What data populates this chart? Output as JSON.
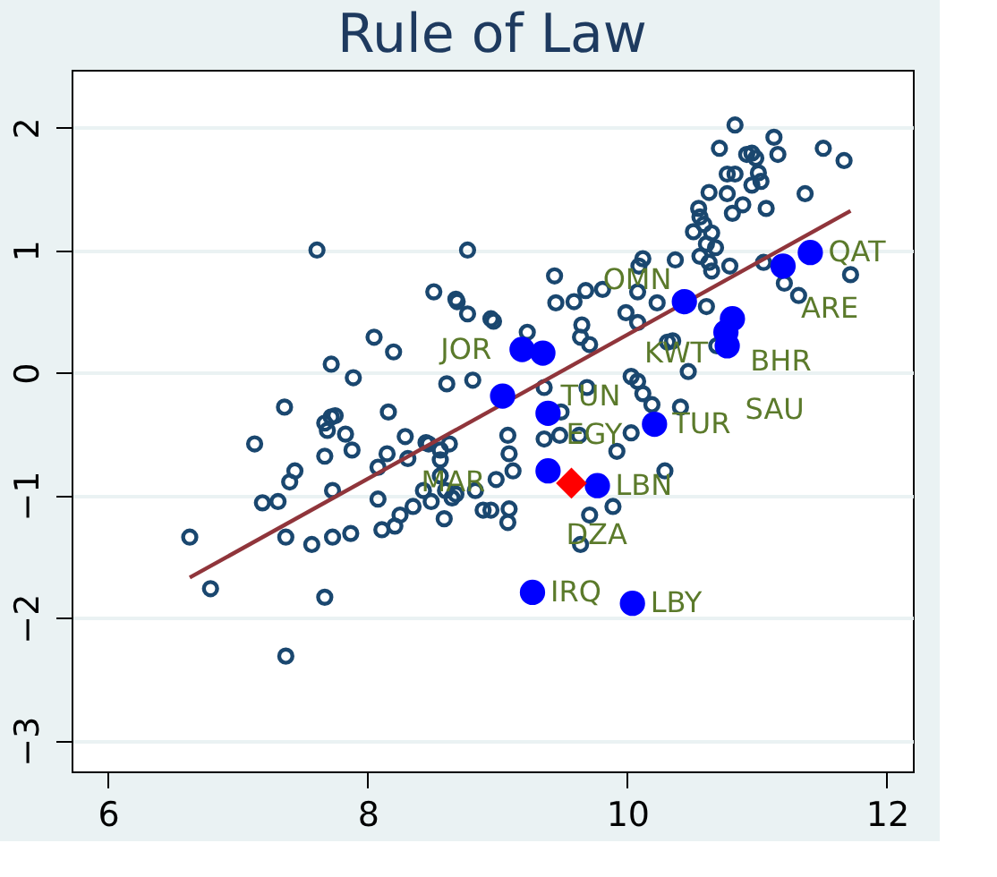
{
  "chart_data": {
    "type": "scatter",
    "title": "Rule of Law",
    "xlim": [
      5.72,
      12.2
    ],
    "xticks": [
      6,
      8,
      10,
      12
    ],
    "ylim": [
      -3.25,
      2.47
    ],
    "yticks": [
      -3,
      -2,
      -1,
      0,
      1,
      2
    ],
    "grid": "y",
    "marker": "circle",
    "series": [
      {
        "color": "#1a476f",
        "x": [
          7.36,
          7.13,
          7.67,
          7.72,
          7.75,
          7.69,
          7.83,
          7.88,
          8.16,
          8.29,
          7.67,
          7.44,
          7.4,
          7.31,
          7.19,
          7.73,
          8.08,
          8.15,
          8.31,
          8.47,
          8.56,
          8.63,
          8.56,
          8.56,
          8.43,
          8.6,
          8.65,
          8.83,
          8.08,
          8.49,
          8.35,
          8.25,
          8.21,
          8.11,
          8.59,
          7.87,
          7.73,
          7.57,
          7.37,
          6.63,
          6.79,
          7.67,
          7.37,
          8.89,
          7.61,
          8.77,
          8.51,
          8.68,
          8.77,
          8.95,
          8.05,
          8.2,
          7.72,
          7.89,
          8.61,
          8.81,
          8.45,
          10.83,
          11.13,
          10.71,
          11.51,
          11.67,
          11.16,
          10.92,
          10.96,
          10.99,
          11.01,
          10.83,
          10.77,
          10.96,
          11.03,
          10.63,
          10.77,
          11.37,
          10.89,
          10.81,
          11.07,
          10.55,
          10.56,
          10.59,
          10.51,
          10.65,
          10.61,
          10.68,
          10.56,
          10.63,
          10.79,
          11.05,
          10.37,
          10.12,
          10.09,
          10.65,
          11.72,
          11.21,
          11.32,
          9.44,
          9.68,
          9.81,
          9.59,
          9.45,
          10.08,
          10.23,
          9.99,
          10.08,
          10.61,
          8.97,
          9.23,
          9.65,
          9.64,
          10.35,
          10.31,
          10.69,
          10.47,
          9.71,
          8.69,
          9.36,
          9.49,
          9.69,
          10.12,
          10.19,
          10.41,
          10.03,
          10.08,
          9.08,
          9.36,
          9.48,
          9.63,
          10.03,
          9.92,
          9.09,
          9.12,
          8.99,
          8.68,
          8.95,
          9.09,
          9.08,
          9.71,
          9.89,
          9.64,
          10.29
        ],
        "values": [
          -0.28,
          -0.58,
          -0.41,
          -0.36,
          -0.35,
          -0.47,
          -0.5,
          -0.63,
          -0.32,
          -0.52,
          -0.68,
          -0.8,
          -0.89,
          -1.05,
          -1.06,
          -0.96,
          -0.77,
          -0.66,
          -0.7,
          -0.58,
          -0.63,
          -0.58,
          -0.71,
          -0.84,
          -0.96,
          -0.96,
          -1.02,
          -0.96,
          -1.03,
          -1.05,
          -1.09,
          -1.16,
          -1.25,
          -1.28,
          -1.19,
          -1.31,
          -1.34,
          -1.4,
          -1.34,
          -1.34,
          -1.76,
          -1.83,
          -2.31,
          -1.12,
          1.0,
          1.0,
          0.66,
          0.6,
          0.48,
          0.44,
          0.29,
          0.17,
          0.07,
          -0.04,
          -0.09,
          -0.06,
          -0.57,
          2.02,
          1.92,
          1.83,
          1.83,
          1.73,
          1.78,
          1.78,
          1.79,
          1.75,
          1.63,
          1.62,
          1.62,
          1.53,
          1.56,
          1.47,
          1.46,
          1.46,
          1.37,
          1.3,
          1.34,
          1.34,
          1.27,
          1.21,
          1.15,
          1.14,
          1.05,
          1.02,
          0.95,
          0.9,
          0.87,
          0.9,
          0.92,
          0.93,
          0.87,
          0.83,
          0.8,
          0.73,
          0.63,
          0.79,
          0.67,
          0.68,
          0.58,
          0.57,
          0.66,
          0.57,
          0.49,
          0.41,
          0.54,
          0.42,
          0.33,
          0.39,
          0.29,
          0.26,
          0.25,
          0.22,
          0.01,
          0.23,
          0.58,
          -0.12,
          -0.32,
          -0.12,
          -0.17,
          -0.26,
          -0.28,
          -0.03,
          -0.07,
          -0.51,
          -0.54,
          -0.51,
          -0.51,
          -0.49,
          -0.64,
          -0.66,
          -0.8,
          -0.87,
          -0.99,
          -1.12,
          -1.11,
          -1.22,
          -1.16,
          -1.09,
          -1.4,
          -0.8
        ]
      },
      {
        "type": "line",
        "color": "#90353b",
        "marker": "none",
        "line_style": "solid",
        "x": [
          6.63,
          11.72
        ],
        "values": [
          -1.67,
          1.32
        ]
      },
      {
        "color": "#0000ff",
        "x": [
          11.41,
          11.2,
          10.44,
          10.81,
          10.76,
          10.77,
          9.19,
          9.35,
          9.04,
          9.39,
          10.21,
          9.39,
          9.77,
          9.27,
          10.04
        ],
        "values": [
          0.98,
          0.87,
          0.58,
          0.44,
          0.33,
          0.22,
          0.19,
          0.16,
          -0.19,
          -0.33,
          -0.42,
          -0.8,
          -0.92,
          -1.79,
          -1.88
        ]
      },
      {
        "color": "#ff0000",
        "marker": "diamond",
        "x": [
          9.57
        ],
        "values": [
          -0.9
        ]
      }
    ],
    "annotations": [
      {
        "text": "QAT",
        "x": 11.41,
        "y": 0.98
      },
      {
        "text": "ARE",
        "x": 11.2,
        "y": 0.87
      },
      {
        "text": "OMN",
        "x": 10.44,
        "y": 0.58
      },
      {
        "text": "BHR",
        "x": 10.81,
        "y": 0.44
      },
      {
        "text": "KWT",
        "x": 10.76,
        "y": 0.33
      },
      {
        "text": "SAU",
        "x": 10.77,
        "y": 0.22
      },
      {
        "text": "JOR",
        "x": 9.19,
        "y": 0.19
      },
      {
        "text": "TUN",
        "x": 9.35,
        "y": 0.16
      },
      {
        "text": "MAR",
        "x": 9.04,
        "y": -0.19
      },
      {
        "text": "EGY",
        "x": 9.39,
        "y": -0.33
      },
      {
        "text": "TUR",
        "x": 10.21,
        "y": -0.42
      },
      {
        "text": "DZA",
        "x": 9.39,
        "y": -0.8
      },
      {
        "text": "LBN",
        "x": 9.77,
        "y": -0.92
      },
      {
        "text": "IRQ",
        "x": 9.27,
        "y": -1.79
      },
      {
        "text": "LBY",
        "x": 10.04,
        "y": -1.88
      }
    ]
  }
}
